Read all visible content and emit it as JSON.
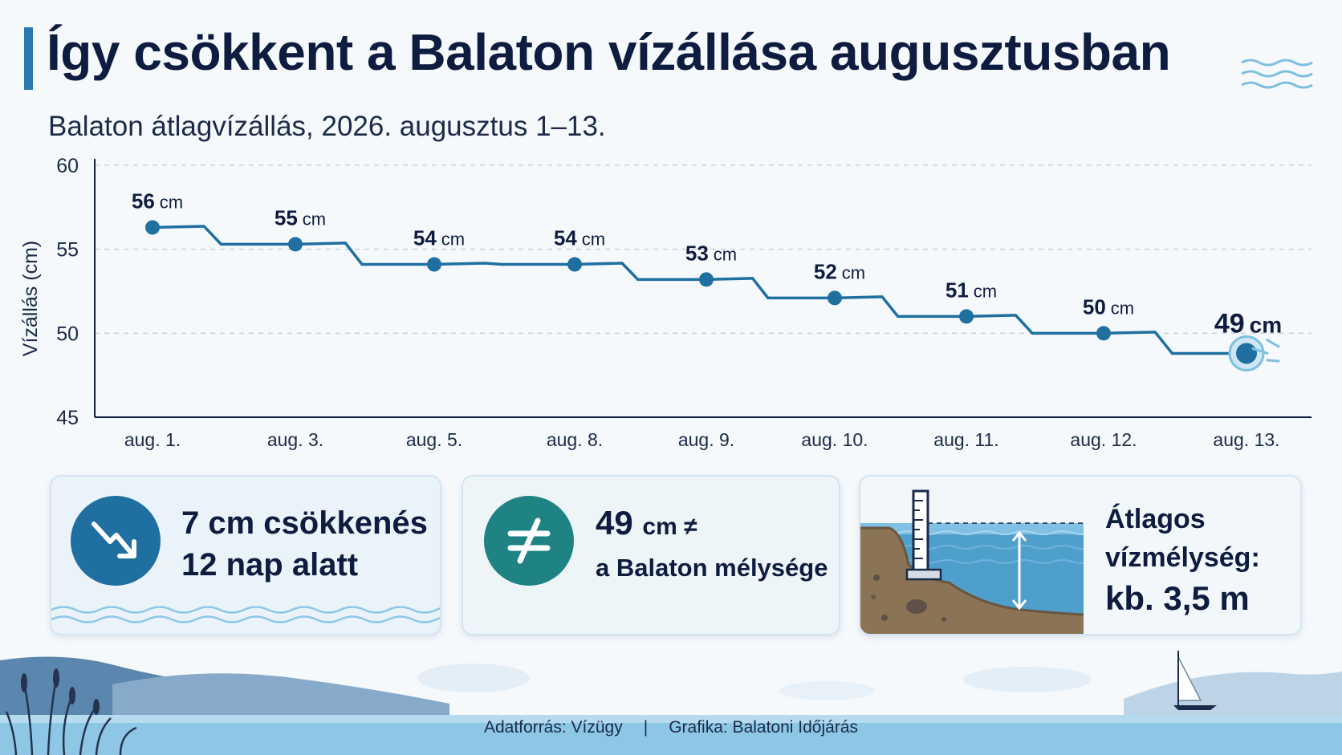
{
  "header": {
    "title": "Így csökkent a Balaton vízállása augusztusban",
    "subtitle": "Balaton átlagvízállás, 2026. augusztus 1–13."
  },
  "chart_data": {
    "type": "line",
    "title": "Így csökkent a Balaton vízállása augusztusban",
    "subtitle": "Balaton átlagvízállás, 2026. augusztus 1–13.",
    "xlabel": "",
    "ylabel": "Vízállás (cm)",
    "ylim": [
      45,
      60
    ],
    "yticks": [
      45,
      50,
      55,
      60
    ],
    "grid": true,
    "categories": [
      "aug. 1.",
      "aug. 3.",
      "aug. 5.",
      "aug. 8.",
      "aug. 9.",
      "aug. 10.",
      "aug. 11.",
      "aug. 12.",
      "aug. 13."
    ],
    "series": [
      {
        "values": [
          56.3,
          55.3,
          54.1,
          54.1,
          53.2,
          52.1,
          51.0,
          50.0,
          48.8
        ],
        "labels": [
          "56 cm",
          "55 cm",
          "54 cm",
          "54 cm",
          "53 cm",
          "52 cm",
          "51 cm",
          "50 cm",
          "49 cm"
        ],
        "color": "#1f6fa0"
      }
    ]
  },
  "cards": {
    "decline": {
      "line1": "7 cm csökkenés",
      "line2": "12 nap alatt",
      "icon": "trend-down-icon",
      "color": "#1f6fa0"
    },
    "not_depth": {
      "value": "49",
      "unit": "cm ≠",
      "line2": "a Balaton mélysége",
      "icon": "not-equal-icon",
      "color": "#1f8383"
    },
    "depth": {
      "line1": "Átlagos",
      "line2": "vízmélység:",
      "line3": "kb. 3,5 m",
      "icon": "gauge-depth-icon"
    }
  },
  "footer": {
    "source": "Adatforrás: Vízügy",
    "separator": "|",
    "credit": "Grafika: Balatoni Időjárás"
  },
  "colors": {
    "line": "#1f6fa0",
    "title": "#0e1c3f",
    "accent": "#2b7bb0",
    "water": "#8ec7e6"
  }
}
